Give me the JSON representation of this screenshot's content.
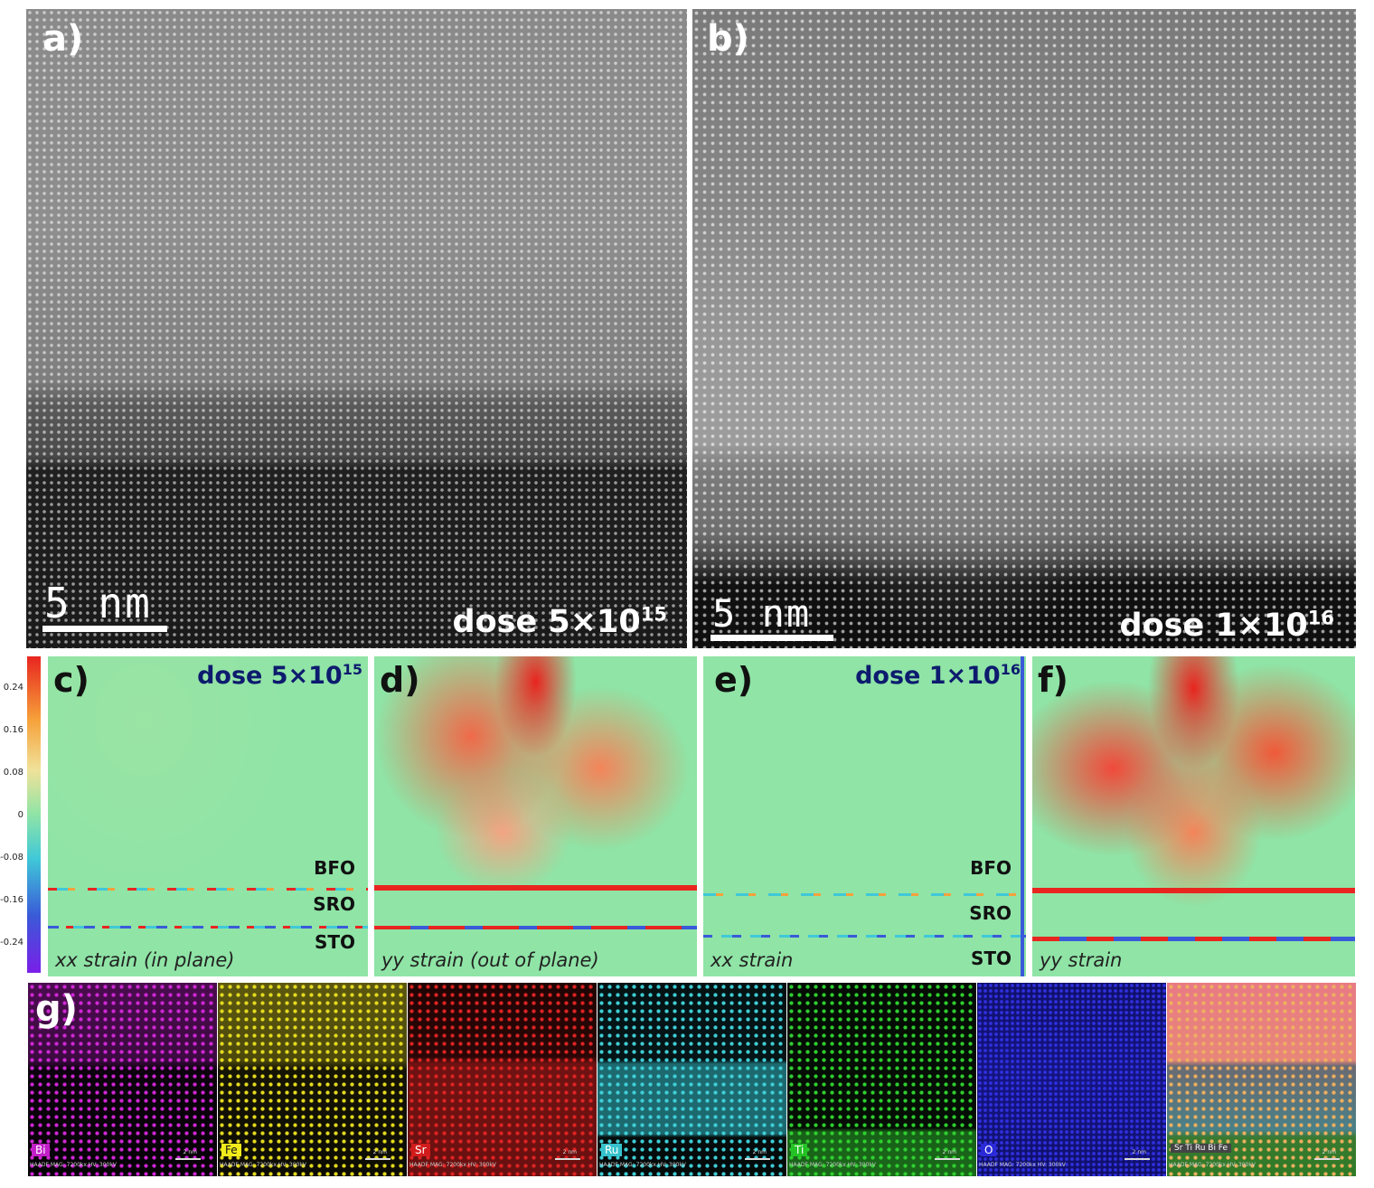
{
  "panels": {
    "a": {
      "label": "a)",
      "scalebar": "5  nm",
      "dose_text": "dose 5×10",
      "dose_exp": "15"
    },
    "b": {
      "label": "b)",
      "scalebar": "5  nm",
      "dose_text": "dose 1×10",
      "dose_exp": "16"
    },
    "c": {
      "label": "c)",
      "dose_text": "dose 5×10",
      "dose_exp": "15",
      "layers": [
        "BFO",
        "SRO",
        "STO"
      ],
      "caption": "xx strain (in plane)"
    },
    "d": {
      "label": "d)",
      "caption": "yy strain (out of plane)"
    },
    "e": {
      "label": "e)",
      "dose_text": "dose 1×10",
      "dose_exp": "16",
      "layers": [
        "BFO",
        "SRO",
        "STO"
      ],
      "caption": "xx strain"
    },
    "f": {
      "label": "f)",
      "caption": "yy strain"
    },
    "g": {
      "label": "g)"
    }
  },
  "colorbar": {
    "ticks": [
      "0.24",
      "0.16",
      "0.08",
      "0",
      "-0.08",
      "-0.16",
      "-0.24"
    ],
    "colors": [
      "#e8251f",
      "#f6a13a",
      "#f0e29a",
      "#8fe4a6",
      "#40c8d8",
      "#3a5ad8",
      "#7a1fe8"
    ]
  },
  "eds_maps": [
    {
      "element": "Bi",
      "color": "#c21fc8",
      "badge_bg": "#c21fc8",
      "footer": "HAADF MAG: 7200kx HV: 300kV",
      "scale": "2 nm"
    },
    {
      "element": "Fe",
      "color": "#d8d21c",
      "badge_bg": "#f2ec1a",
      "footer": "HAADF MAG: 7200kx HV: 300kV",
      "scale": "2 nm"
    },
    {
      "element": "Sr",
      "color": "#c81c1c",
      "badge_bg": "#d21c1c",
      "footer": "HAADF MAG: 7200kx HV: 300kV",
      "scale": "2 nm"
    },
    {
      "element": "Ru",
      "color": "#36c2cc",
      "badge_bg": "#36c2cc",
      "footer": "HAADF MAG: 7200kx HV: 300kV",
      "scale": "2 nm"
    },
    {
      "element": "Ti",
      "color": "#24c224",
      "badge_bg": "#24c224",
      "footer": "HAADF MAG: 7200kx HV: 300kV",
      "scale": "2 nm"
    },
    {
      "element": "O",
      "color": "#2a2ad8",
      "badge_bg": "#2a2ad8",
      "footer": "HAADF MAG: 7200kx HV: 300kV",
      "scale": "2 nm"
    },
    {
      "element": "Sr Ti Ru Bi Fe",
      "color": "#e88a7a",
      "badge_bg": "#444444",
      "footer": "HAADF MAG: 7200kx HV: 300kV",
      "scale": "2 nm"
    }
  ]
}
